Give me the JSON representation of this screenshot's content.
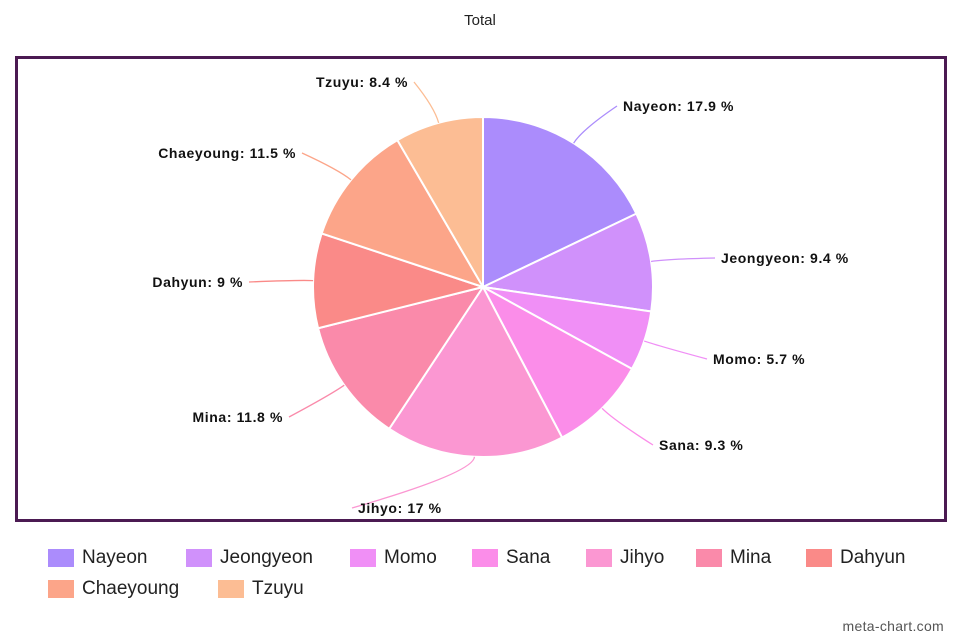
{
  "chart_data": {
    "type": "pie",
    "title": "Total",
    "categories": [
      "Nayeon",
      "Jeongyeon",
      "Momo",
      "Sana",
      "Jihyo",
      "Mina",
      "Dahyun",
      "Chaeyoung",
      "Tzuyu"
    ],
    "values": [
      17.9,
      9.4,
      5.7,
      9.3,
      17,
      11.8,
      9,
      11.5,
      8.4
    ],
    "unit": "%",
    "slice_labels": [
      "Nayeon: 17.9 %",
      "Jeongyeon: 9.4 %",
      "Momo: 5.7 %",
      "Sana: 9.3 %",
      "Jihyo: 17 %",
      "Mina: 11.8 %",
      "Dahyun: 9 %",
      "Chaeyoung: 11.5 %",
      "Tzuyu: 8.4 %"
    ],
    "colors": [
      "#ab8cfc",
      "#d091fb",
      "#f08ff6",
      "#fb8de9",
      "#fb97d2",
      "#fa8aaa",
      "#fa8a88",
      "#fca589",
      "#fcbd94"
    ],
    "legend_position": "bottom",
    "start_angle": "top, clockwise"
  },
  "legend": {
    "items": [
      "Nayeon",
      "Jeongyeon",
      "Momo",
      "Sana",
      "Jihyo",
      "Mina",
      "Dahyun",
      "Chaeyoung",
      "Tzuyu"
    ]
  },
  "watermark": "meta-chart.com"
}
